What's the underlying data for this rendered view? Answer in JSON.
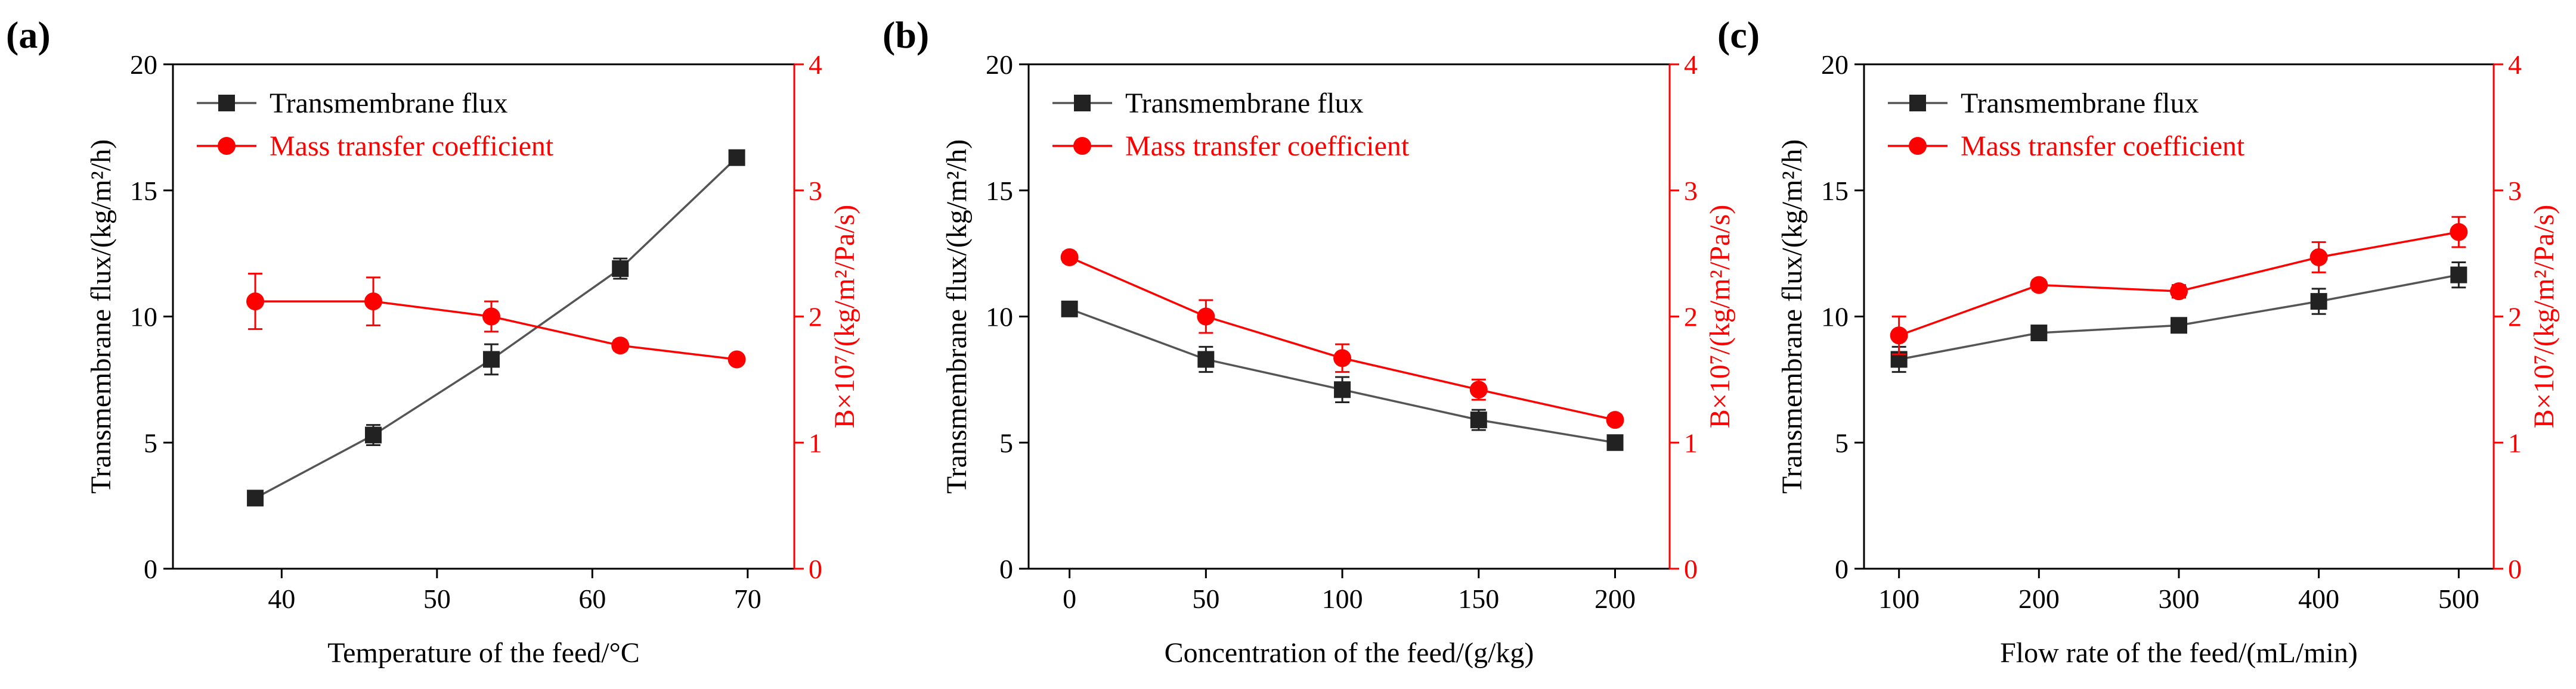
{
  "colors": {
    "left": "#222222",
    "right": "#ff0000",
    "axis": "#000000",
    "leftLine": "#555555"
  },
  "chart_data": [
    {
      "panel": "(a)",
      "type": "line",
      "xlabel": "Temperature of the feed/°C",
      "ylabel_left": "Transmembrane flux/(kg/m²/h)",
      "ylabel_right": "B×10⁷/(kg/m²/Pa/s)",
      "xlim": [
        33,
        73
      ],
      "xticks": [
        40,
        50,
        60,
        70
      ],
      "ylim_left": [
        0,
        20
      ],
      "yticks_left": [
        0,
        5,
        10,
        15,
        20
      ],
      "ylim_right": [
        0,
        4
      ],
      "yticks_right": [
        0,
        1,
        2,
        3,
        4
      ],
      "legend": {
        "placement": "top-left",
        "entries": [
          "Transmembrane flux",
          "Mass transfer coefficient"
        ]
      },
      "series": [
        {
          "name": "Transmembrane flux",
          "axis": "left",
          "marker": "square",
          "x": [
            38.3,
            45.9,
            53.5,
            61.8,
            69.3
          ],
          "y": [
            2.8,
            5.3,
            8.3,
            11.9,
            16.3
          ],
          "err": [
            0.2,
            0.4,
            0.6,
            0.4,
            0.2
          ]
        },
        {
          "name": "Mass transfer coefficient",
          "axis": "right",
          "marker": "circle",
          "x": [
            38.3,
            45.9,
            53.5,
            61.8,
            69.3
          ],
          "y": [
            2.12,
            2.12,
            2.0,
            1.77,
            1.66
          ],
          "err": [
            0.22,
            0.19,
            0.12,
            0.04,
            0.03
          ]
        }
      ]
    },
    {
      "panel": "(b)",
      "type": "line",
      "xlabel": "Concentration of the feed/(g/kg)",
      "ylabel_left": "Transmembrane flux/(kg/m²/h)",
      "ylabel_right": "B×10⁷/(kg/m²/Pa/s)",
      "xlim": [
        -15,
        220
      ],
      "xticks": [
        0,
        50,
        100,
        150,
        200
      ],
      "ylim_left": [
        0,
        20
      ],
      "yticks_left": [
        0,
        5,
        10,
        15,
        20
      ],
      "ylim_right": [
        0,
        4
      ],
      "yticks_right": [
        0,
        1,
        2,
        3,
        4
      ],
      "legend": {
        "placement": "top-left",
        "entries": [
          "Transmembrane flux",
          "Mass transfer coefficient"
        ]
      },
      "series": [
        {
          "name": "Transmembrane flux",
          "axis": "left",
          "marker": "square",
          "x": [
            0,
            50,
            100,
            150,
            200
          ],
          "y": [
            10.3,
            8.3,
            7.1,
            5.9,
            5.0
          ],
          "err": [
            0.2,
            0.5,
            0.5,
            0.4,
            0.2
          ]
        },
        {
          "name": "Mass transfer coefficient",
          "axis": "right",
          "marker": "circle",
          "x": [
            0,
            50,
            100,
            150,
            200
          ],
          "y": [
            2.47,
            2.0,
            1.67,
            1.42,
            1.18
          ],
          "err": [
            0.04,
            0.13,
            0.11,
            0.08,
            0.04
          ]
        }
      ]
    },
    {
      "panel": "(c)",
      "type": "line",
      "xlabel": "Flow rate of the feed/(mL/min)",
      "ylabel_left": "Transmembrane flux/(kg/m²/h)",
      "ylabel_right": "B×10⁷/(kg/m²/Pa/s)",
      "xlim": [
        75,
        525
      ],
      "xticks": [
        100,
        200,
        300,
        400,
        500
      ],
      "ylim_left": [
        0,
        20
      ],
      "yticks_left": [
        0,
        5,
        10,
        15,
        20
      ],
      "ylim_right": [
        0,
        4
      ],
      "yticks_right": [
        0,
        1,
        2,
        3,
        4
      ],
      "legend": {
        "placement": "top-left",
        "entries": [
          "Transmembrane flux",
          "Mass transfer coefficient"
        ]
      },
      "series": [
        {
          "name": "Transmembrane flux",
          "axis": "left",
          "marker": "square",
          "x": [
            100,
            200,
            300,
            400,
            500
          ],
          "y": [
            8.3,
            9.35,
            9.65,
            10.6,
            11.65
          ],
          "err": [
            0.5,
            0.2,
            0.2,
            0.5,
            0.5
          ]
        },
        {
          "name": "Mass transfer coefficient",
          "axis": "right",
          "marker": "circle",
          "x": [
            100,
            200,
            300,
            400,
            500
          ],
          "y": [
            1.85,
            2.25,
            2.2,
            2.47,
            2.67
          ],
          "err": [
            0.15,
            0.04,
            0.05,
            0.12,
            0.12
          ]
        }
      ]
    }
  ]
}
